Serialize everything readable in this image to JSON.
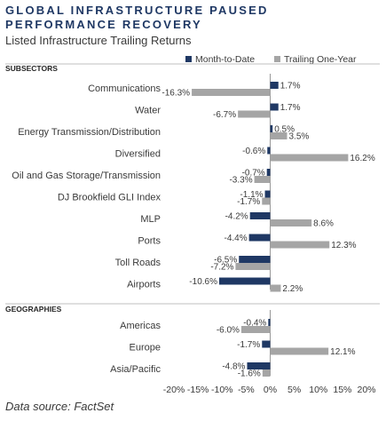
{
  "header": {
    "title": "GLOBAL INFRASTRUCTURE PAUSED PERFORMANCE RECOVERY",
    "subtitle": "Listed Infrastructure Trailing Returns"
  },
  "footer": {
    "source": "Data source: FactSet"
  },
  "colors": {
    "navy": "#1f3864",
    "gray": "#a5a5a5",
    "text": "#3a3a3a"
  },
  "chart_data": {
    "type": "bar",
    "orientation": "horizontal",
    "legend_position": "top-right",
    "grid": false,
    "xlim": [
      -20,
      20
    ],
    "x_ticks": [
      "-20%",
      "-15%",
      "-10%",
      "-5%",
      "0%",
      "5%",
      "10%",
      "15%",
      "20%"
    ],
    "series": [
      {
        "name": "Month-to-Date",
        "color": "#1f3864"
      },
      {
        "name": "Trailing One-Year",
        "color": "#a5a5a5"
      }
    ],
    "groups": [
      {
        "heading": "SUBSECTORS",
        "items": [
          {
            "label": "Communications",
            "values": [
              1.7,
              -16.3
            ],
            "labels": [
              "1.7%",
              "-16.3%"
            ]
          },
          {
            "label": "Water",
            "values": [
              1.7,
              -6.7
            ],
            "labels": [
              "1.7%",
              "-6.7%"
            ]
          },
          {
            "label": "Energy Transmission/Distribution",
            "values": [
              0.5,
              3.5
            ],
            "labels": [
              "0.5%",
              "3.5%"
            ]
          },
          {
            "label": "Diversified",
            "values": [
              -0.6,
              16.2
            ],
            "labels": [
              "-0.6%",
              "16.2%"
            ]
          },
          {
            "label": "Oil and Gas Storage/Transmission",
            "values": [
              -0.7,
              -3.3
            ],
            "labels": [
              "-0.7%",
              "-3.3%"
            ]
          },
          {
            "label": "DJ Brookfield GLI Index",
            "values": [
              -1.1,
              -1.7
            ],
            "labels": [
              "-1.1%",
              "-1.7%"
            ]
          },
          {
            "label": "MLP",
            "values": [
              -4.2,
              8.6
            ],
            "labels": [
              "-4.2%",
              "8.6%"
            ]
          },
          {
            "label": "Ports",
            "values": [
              -4.4,
              12.3
            ],
            "labels": [
              "-4.4%",
              "12.3%"
            ]
          },
          {
            "label": "Toll Roads",
            "values": [
              -6.5,
              -7.2
            ],
            "labels": [
              "-6.5%",
              "-7.2%"
            ]
          },
          {
            "label": "Airports",
            "values": [
              -10.6,
              2.2
            ],
            "labels": [
              "-10.6%",
              "2.2%"
            ]
          }
        ]
      },
      {
        "heading": "GEOGRAPHIES",
        "items": [
          {
            "label": "Americas",
            "values": [
              -0.4,
              -6.0
            ],
            "labels": [
              "-0.4%",
              "-6.0%"
            ]
          },
          {
            "label": "Europe",
            "values": [
              -1.7,
              12.1
            ],
            "labels": [
              "-1.7%",
              "12.1%"
            ]
          },
          {
            "label": "Asia/Pacific",
            "values": [
              -4.8,
              -1.6
            ],
            "labels": [
              "-4.8%",
              "-1.6%"
            ]
          }
        ]
      }
    ]
  }
}
